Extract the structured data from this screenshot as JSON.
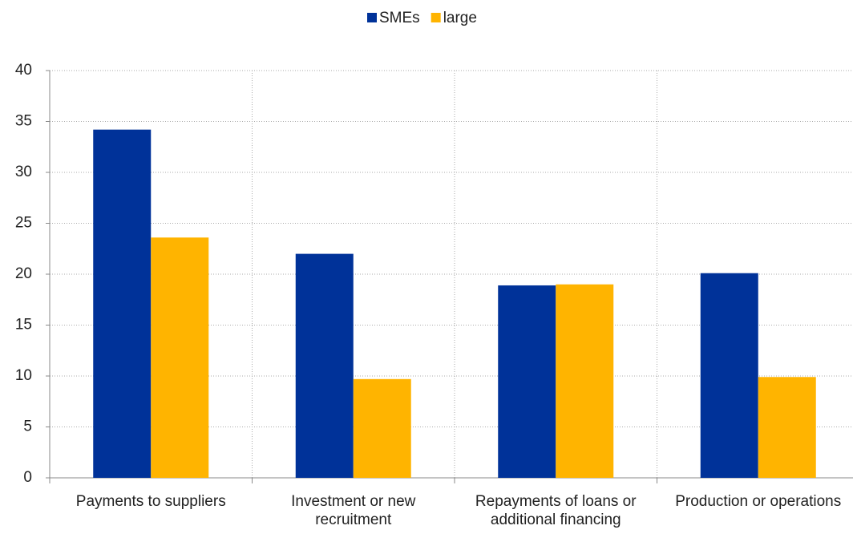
{
  "chart_data": {
    "type": "bar",
    "categories": [
      "Payments to suppliers",
      "Investment or new recruitment",
      "Repayments of loans or additional financing",
      "Production or operations"
    ],
    "series": [
      {
        "name": "SMEs",
        "color": "#003299",
        "values": [
          34.2,
          22.0,
          18.9,
          20.1
        ]
      },
      {
        "name": "large",
        "color": "#ffb400",
        "values": [
          23.6,
          9.7,
          19.0,
          9.9
        ]
      }
    ],
    "ylim": [
      0,
      40
    ],
    "yticks": [
      0,
      5,
      10,
      15,
      20,
      25,
      30,
      35,
      40
    ],
    "grid": true,
    "legend": "top"
  }
}
